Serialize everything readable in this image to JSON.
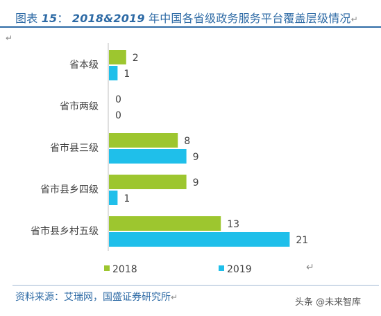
{
  "title": {
    "prefix": "图表",
    "number": "15",
    "sep": "：",
    "years": "2018&2019",
    "text": "年中国各省级政务服务平台覆盖层级情况"
  },
  "chart_data": {
    "type": "bar",
    "orientation": "horizontal",
    "categories": [
      "省本级",
      "省市两级",
      "省市县三级",
      "省市县乡四级",
      "省市县乡村五级"
    ],
    "series": [
      {
        "name": "2018",
        "values": [
          2,
          0,
          8,
          9,
          13
        ],
        "color": "#9dc62f"
      },
      {
        "name": "2019",
        "values": [
          1,
          0,
          9,
          1,
          21
        ],
        "color": "#1fbfea"
      }
    ],
    "xlim": [
      0,
      21
    ],
    "grid": false,
    "legend_position": "bottom"
  },
  "source": "资料来源：艾瑞网，国盛证券研究所",
  "watermark": "头条 @未来智库",
  "para_mark": "↵",
  "colors": {
    "accent": "#2d6aa5",
    "axis": "#bfbfbf"
  }
}
